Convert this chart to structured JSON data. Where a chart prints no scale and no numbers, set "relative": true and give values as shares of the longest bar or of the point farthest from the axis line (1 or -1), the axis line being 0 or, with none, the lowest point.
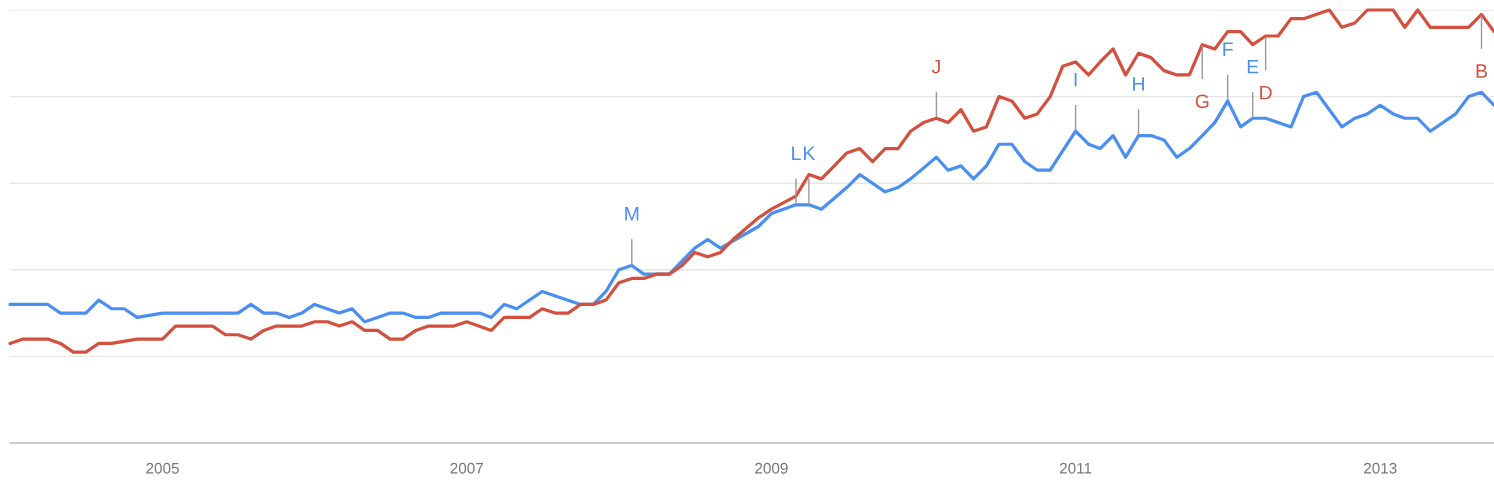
{
  "chart_data": {
    "type": "line",
    "relative": true,
    "grid": "y",
    "xlim": [
      "2004-01",
      "2013-10"
    ],
    "xticks": [
      "2005",
      "2007",
      "2009",
      "2011",
      "2013"
    ],
    "series": [
      {
        "color": "#4a8ff0",
        "x": [
          "2004-01",
          "2004-04",
          "2004-05",
          "2004-07",
          "2004-08",
          "2004-09",
          "2004-10",
          "2004-11",
          "2005-01",
          "2005-05",
          "2005-06",
          "2005-07",
          "2005-08",
          "2005-09",
          "2005-10",
          "2005-11",
          "2005-12",
          "2006-01",
          "2006-03",
          "2006-04",
          "2006-05",
          "2006-06",
          "2006-07",
          "2006-08",
          "2006-09",
          "2006-10",
          "2006-11",
          "2006-12",
          "2007-01",
          "2007-02",
          "2007-03",
          "2007-04",
          "2007-05",
          "2007-07",
          "2007-10",
          "2007-11",
          "2007-12",
          "2008-01",
          "2008-02",
          "2008-03",
          "2008-05",
          "2008-07",
          "2008-08",
          "2008-09",
          "2008-12",
          "2009-01",
          "2009-03",
          "2009-04",
          "2009-05",
          "2009-07",
          "2009-08",
          "2009-10",
          "2009-11",
          "2009-12",
          "2010-02",
          "2010-03",
          "2010-04",
          "2010-05",
          "2010-06",
          "2010-07",
          "2010-08",
          "2010-09",
          "2010-10",
          "2010-11",
          "2011-01",
          "2011-02",
          "2011-03",
          "2011-04",
          "2011-05",
          "2011-06",
          "2011-07",
          "2011-08",
          "2011-09",
          "2011-10",
          "2011-11",
          "2011-12",
          "2012-01",
          "2012-02",
          "2012-03",
          "2012-04",
          "2012-06",
          "2012-07",
          "2012-08",
          "2012-10",
          "2012-11",
          "2012-12",
          "2013-01",
          "2013-02",
          "2013-03",
          "2013-04",
          "2013-05",
          "2013-07",
          "2013-08",
          "2013-09",
          "2013-10"
        ],
        "values": [
          0.32,
          0.32,
          0.3,
          0.3,
          0.33,
          0.31,
          0.31,
          0.29,
          0.3,
          0.3,
          0.3,
          0.3,
          0.32,
          0.3,
          0.3,
          0.29,
          0.3,
          0.32,
          0.3,
          0.31,
          0.28,
          0.29,
          0.3,
          0.3,
          0.29,
          0.29,
          0.3,
          0.3,
          0.3,
          0.3,
          0.29,
          0.32,
          0.31,
          0.35,
          0.32,
          0.32,
          0.35,
          0.4,
          0.41,
          0.39,
          0.39,
          0.45,
          0.47,
          0.45,
          0.5,
          0.53,
          0.55,
          0.55,
          0.54,
          0.59,
          0.62,
          0.58,
          0.59,
          0.61,
          0.66,
          0.63,
          0.64,
          0.61,
          0.64,
          0.69,
          0.69,
          0.65,
          0.63,
          0.63,
          0.72,
          0.69,
          0.68,
          0.71,
          0.66,
          0.71,
          0.71,
          0.7,
          0.66,
          0.68,
          0.71,
          0.74,
          0.79,
          0.73,
          0.75,
          0.75,
          0.73,
          0.8,
          0.81,
          0.73,
          0.75,
          0.76,
          0.78,
          0.76,
          0.75,
          0.75,
          0.72,
          0.76,
          0.8,
          0.81,
          0.78
        ]
      },
      {
        "color": "#d4503e",
        "x": [
          "2004-01",
          "2004-02",
          "2004-04",
          "2004-05",
          "2004-06",
          "2004-07",
          "2004-08",
          "2004-09",
          "2004-11",
          "2005-01",
          "2005-02",
          "2005-05",
          "2005-06",
          "2005-07",
          "2005-08",
          "2005-09",
          "2005-10",
          "2005-12",
          "2006-01",
          "2006-02",
          "2006-03",
          "2006-04",
          "2006-05",
          "2006-06",
          "2006-07",
          "2006-08",
          "2006-09",
          "2006-10",
          "2006-12",
          "2007-01",
          "2007-03",
          "2007-04",
          "2007-05",
          "2007-06",
          "2007-07",
          "2007-08",
          "2007-09",
          "2007-10",
          "2007-11",
          "2007-12",
          "2008-01",
          "2008-02",
          "2008-03",
          "2008-04",
          "2008-05",
          "2008-06",
          "2008-07",
          "2008-08",
          "2008-09",
          "2008-10",
          "2008-12",
          "2009-01",
          "2009-03",
          "2009-04",
          "2009-05",
          "2009-06",
          "2009-07",
          "2009-08",
          "2009-09",
          "2009-10",
          "2009-11",
          "2009-12",
          "2010-01",
          "2010-02",
          "2010-03",
          "2010-04",
          "2010-05",
          "2010-06",
          "2010-07",
          "2010-08",
          "2010-09",
          "2010-10",
          "2010-11",
          "2010-12",
          "2011-01",
          "2011-02",
          "2011-03",
          "2011-04",
          "2011-05",
          "2011-06",
          "2011-07",
          "2011-08",
          "2011-09",
          "2011-10",
          "2011-11",
          "2011-12",
          "2012-01",
          "2012-02",
          "2012-03",
          "2012-04",
          "2012-05",
          "2012-06",
          "2012-07",
          "2012-09",
          "2012-10",
          "2012-11",
          "2012-12",
          "2013-02",
          "2013-03",
          "2013-04",
          "2013-05",
          "2013-08",
          "2013-09",
          "2013-10"
        ],
        "values": [
          0.23,
          0.24,
          0.24,
          0.23,
          0.21,
          0.21,
          0.23,
          0.23,
          0.24,
          0.24,
          0.27,
          0.27,
          0.25,
          0.25,
          0.24,
          0.26,
          0.27,
          0.27,
          0.28,
          0.28,
          0.27,
          0.28,
          0.26,
          0.26,
          0.24,
          0.24,
          0.26,
          0.27,
          0.27,
          0.28,
          0.26,
          0.29,
          0.29,
          0.29,
          0.31,
          0.3,
          0.3,
          0.32,
          0.32,
          0.33,
          0.37,
          0.38,
          0.38,
          0.39,
          0.39,
          0.41,
          0.44,
          0.43,
          0.44,
          0.47,
          0.52,
          0.54,
          0.57,
          0.62,
          0.61,
          0.64,
          0.67,
          0.68,
          0.65,
          0.68,
          0.68,
          0.72,
          0.74,
          0.75,
          0.74,
          0.77,
          0.72,
          0.73,
          0.8,
          0.79,
          0.75,
          0.76,
          0.8,
          0.87,
          0.88,
          0.85,
          0.88,
          0.91,
          0.85,
          0.9,
          0.89,
          0.86,
          0.85,
          0.85,
          0.92,
          0.91,
          0.95,
          0.95,
          0.92,
          0.94,
          0.94,
          0.98,
          0.98,
          1.0,
          0.96,
          0.97,
          1.0,
          1.0,
          0.96,
          1.0,
          0.96,
          0.96,
          0.99,
          0.95
        ]
      }
    ],
    "annotations": [
      {
        "text": "M",
        "x": "2008-02",
        "y": 0.41
      },
      {
        "text": "L",
        "x": "2009-03",
        "y": 0.55
      },
      {
        "text": "K",
        "x": "2009-04",
        "y": 0.55
      },
      {
        "text": "J",
        "x": "2010-02",
        "y": 0.75
      },
      {
        "text": "I",
        "x": "2011-01",
        "y": 0.72
      },
      {
        "text": "H",
        "x": "2011-06",
        "y": 0.71
      },
      {
        "text": "G",
        "x": "2011-11",
        "y": 0.92
      },
      {
        "text": "F",
        "x": "2012-01",
        "y": 0.79
      },
      {
        "text": "E",
        "x": "2012-03",
        "y": 0.75
      },
      {
        "text": "D",
        "x": "2012-04",
        "y": 0.94
      },
      {
        "text": "B",
        "x": "2013-09",
        "y": 0.99
      }
    ]
  }
}
